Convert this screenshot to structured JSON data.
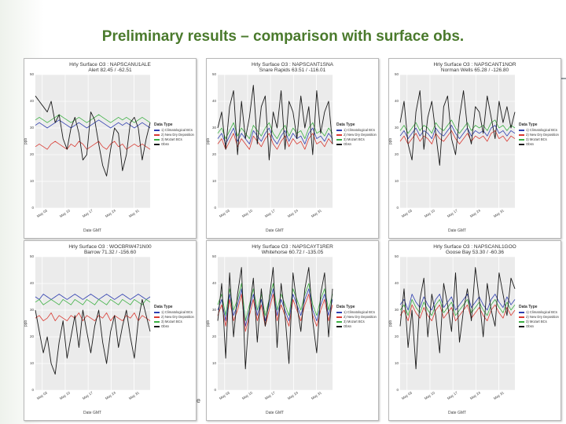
{
  "slide": {
    "title": "Preliminary results – comparison with surface obs.",
    "footer_fragment": "e"
  },
  "legend": {
    "title": "Data Type",
    "items": [
      {
        "label": "1) Climatological BCs",
        "color": "#2f3fb0"
      },
      {
        "label": "2) New Dry Deposition",
        "color": "#d93a32"
      },
      {
        "label": "3) Mozart BCs",
        "color": "#3cb043"
      },
      {
        "label": "Obsn",
        "color": "#1a1a1a"
      }
    ]
  },
  "chart_data": [
    {
      "type": "line",
      "title": "Hrly Surface O3 : NAPSCANU1ALE",
      "subtitle": "Alert 82.45 / -62.51",
      "xlabel": "Date GMT",
      "ylabel": "ppb",
      "yticks": [
        0,
        10,
        20,
        30,
        40,
        50
      ],
      "xticks": [
        "May 03",
        "May 10",
        "May 17",
        "May 24",
        "May 31"
      ],
      "ylim": [
        0,
        50
      ],
      "series": [
        {
          "name": "1) Climatological BCs",
          "values": [
            31,
            32,
            31,
            30,
            31,
            32,
            33,
            32,
            31,
            30,
            31,
            32,
            31,
            30,
            31,
            32,
            33,
            32,
            31,
            30,
            31,
            32,
            31,
            32,
            31,
            30,
            31,
            32,
            31,
            30
          ]
        },
        {
          "name": "2) New Dry Deposition",
          "values": [
            23,
            24,
            23,
            22,
            24,
            25,
            24,
            23,
            22,
            24,
            23,
            25,
            24,
            22,
            23,
            24,
            25,
            23,
            22,
            24,
            25,
            23,
            24,
            22,
            23,
            24,
            23,
            24,
            23,
            22
          ]
        },
        {
          "name": "3) Mozart BCs",
          "values": [
            33,
            34,
            33,
            32,
            33,
            34,
            35,
            34,
            33,
            32,
            33,
            34,
            33,
            32,
            33,
            34,
            35,
            34,
            33,
            32,
            33,
            34,
            33,
            34,
            33,
            32,
            33,
            34,
            33,
            32
          ]
        },
        {
          "name": "Obsn",
          "values": [
            42,
            40,
            38,
            36,
            40,
            32,
            35,
            26,
            22,
            30,
            34,
            28,
            18,
            20,
            36,
            33,
            24,
            16,
            12,
            22,
            30,
            28,
            14,
            20,
            32,
            34,
            30,
            18,
            26,
            32
          ]
        }
      ]
    },
    {
      "type": "line",
      "title": "Hrly Surface O3 : NAPSCANT1SNA",
      "subtitle": "Snare Rapids 63.51 / -116.01",
      "xlabel": "Date GMT",
      "ylabel": "ppb",
      "yticks": [
        0,
        10,
        20,
        30,
        40,
        50
      ],
      "xticks": [
        "May 03",
        "May 10",
        "May 17",
        "May 24",
        "May 31"
      ],
      "ylim": [
        0,
        50
      ],
      "series": [
        {
          "name": "1) Climatological BCs",
          "values": [
            26,
            28,
            24,
            27,
            30,
            25,
            28,
            26,
            24,
            29,
            27,
            25,
            28,
            30,
            26,
            24,
            27,
            29,
            25,
            28,
            26,
            27,
            24,
            28,
            30,
            26,
            27,
            25,
            28,
            26
          ]
        },
        {
          "name": "2) New Dry Deposition",
          "values": [
            24,
            26,
            22,
            25,
            28,
            23,
            26,
            24,
            22,
            27,
            25,
            23,
            26,
            28,
            24,
            22,
            25,
            27,
            23,
            26,
            24,
            25,
            22,
            26,
            28,
            24,
            25,
            23,
            26,
            24
          ]
        },
        {
          "name": "3) Mozart BCs",
          "values": [
            28,
            30,
            26,
            29,
            32,
            27,
            30,
            28,
            26,
            31,
            29,
            27,
            30,
            32,
            28,
            26,
            29,
            31,
            27,
            30,
            28,
            29,
            26,
            30,
            32,
            28,
            29,
            27,
            30,
            28
          ]
        },
        {
          "name": "Obsn",
          "values": [
            30,
            36,
            22,
            38,
            44,
            20,
            40,
            26,
            34,
            46,
            24,
            38,
            42,
            18,
            36,
            30,
            44,
            22,
            40,
            36,
            26,
            42,
            30,
            38,
            20,
            44,
            28,
            36,
            40,
            24
          ]
        }
      ]
    },
    {
      "type": "line",
      "title": "Hrly Surface O3 : NAPSCANT1NOR",
      "subtitle": "Norman Wells 65.28 / -126.80",
      "xlabel": "Date GMT",
      "ylabel": "ppb",
      "yticks": [
        0,
        10,
        20,
        30,
        40,
        50
      ],
      "xticks": [
        "May 03",
        "May 10",
        "May 17",
        "May 24",
        "May 31"
      ],
      "ylim": [
        0,
        50
      ],
      "series": [
        {
          "name": "1) Climatological BCs",
          "values": [
            27,
            29,
            26,
            28,
            30,
            27,
            29,
            28,
            26,
            30,
            28,
            27,
            29,
            31,
            28,
            26,
            28,
            30,
            27,
            29,
            28,
            29,
            27,
            30,
            31,
            28,
            29,
            27,
            29,
            28
          ]
        },
        {
          "name": "2) New Dry Deposition",
          "values": [
            25,
            27,
            24,
            26,
            28,
            25,
            27,
            26,
            24,
            28,
            26,
            25,
            27,
            29,
            26,
            24,
            26,
            28,
            25,
            27,
            26,
            27,
            25,
            28,
            29,
            26,
            27,
            25,
            27,
            26
          ]
        },
        {
          "name": "3) Mozart BCs",
          "values": [
            29,
            31,
            28,
            30,
            32,
            29,
            31,
            30,
            28,
            32,
            30,
            29,
            31,
            33,
            30,
            28,
            30,
            32,
            29,
            31,
            30,
            31,
            29,
            32,
            33,
            30,
            31,
            29,
            31,
            30
          ]
        },
        {
          "name": "Obsn",
          "values": [
            32,
            40,
            24,
            18,
            36,
            44,
            22,
            34,
            40,
            28,
            16,
            38,
            42,
            26,
            20,
            34,
            44,
            30,
            24,
            38,
            36,
            28,
            42,
            34,
            26,
            40,
            32,
            38,
            30,
            36
          ]
        }
      ]
    },
    {
      "type": "line",
      "title": "Hrly Surface O3 : WOCBRW471N00",
      "subtitle": "Barrow 71.32 / -156.60",
      "xlabel": "Date GMT",
      "ylabel": "ppb",
      "yticks": [
        0,
        10,
        20,
        30,
        40,
        50
      ],
      "xticks": [
        "May 03",
        "May 10",
        "May 17",
        "May 24",
        "May 31"
      ],
      "ylim": [
        0,
        50
      ],
      "series": [
        {
          "name": "1) Climatological BCs",
          "values": [
            35,
            34,
            36,
            35,
            34,
            35,
            36,
            35,
            34,
            35,
            36,
            35,
            34,
            35,
            36,
            35,
            34,
            35,
            36,
            35,
            34,
            35,
            36,
            35,
            34,
            35,
            36,
            35,
            34,
            35
          ]
        },
        {
          "name": "2) New Dry Deposition",
          "values": [
            27,
            28,
            26,
            27,
            29,
            26,
            28,
            27,
            26,
            28,
            27,
            29,
            26,
            28,
            27,
            26,
            28,
            27,
            29,
            26,
            28,
            27,
            26,
            28,
            27,
            29,
            26,
            28,
            27,
            26
          ]
        },
        {
          "name": "3) Mozart BCs",
          "values": [
            33,
            34,
            32,
            33,
            34,
            33,
            32,
            34,
            33,
            32,
            34,
            33,
            32,
            34,
            33,
            32,
            34,
            33,
            32,
            34,
            33,
            32,
            34,
            33,
            32,
            34,
            33,
            32,
            34,
            33
          ]
        },
        {
          "name": "Obsn",
          "values": [
            30,
            22,
            14,
            20,
            10,
            6,
            18,
            26,
            12,
            20,
            28,
            16,
            30,
            22,
            14,
            24,
            30,
            18,
            10,
            22,
            28,
            16,
            24,
            30,
            20,
            12,
            26,
            34,
            28,
            22
          ]
        }
      ]
    },
    {
      "type": "line",
      "title": "Hrly Surface O3 : NAPSCAYT1RER",
      "subtitle": "Whitehorse 60.72 / -135.05",
      "xlabel": "Date GMT",
      "ylabel": "ppb",
      "yticks": [
        0,
        10,
        20,
        30,
        40,
        50
      ],
      "xticks": [
        "May 03",
        "May 10",
        "May 17",
        "May 24",
        "May 31"
      ],
      "ylim": [
        0,
        50
      ],
      "series": [
        {
          "name": "1) Climatological BCs",
          "values": [
            30,
            34,
            26,
            36,
            28,
            32,
            38,
            24,
            30,
            36,
            28,
            34,
            26,
            32,
            38,
            28,
            34,
            30,
            26,
            36,
            32,
            28,
            34,
            38,
            30,
            26,
            32,
            36,
            28,
            34
          ]
        },
        {
          "name": "2) New Dry Deposition",
          "values": [
            28,
            32,
            24,
            34,
            26,
            30,
            36,
            22,
            28,
            34,
            26,
            32,
            24,
            30,
            36,
            26,
            32,
            28,
            24,
            34,
            30,
            26,
            32,
            36,
            28,
            24,
            30,
            34,
            26,
            32
          ]
        },
        {
          "name": "3) Mozart BCs",
          "values": [
            32,
            36,
            28,
            38,
            30,
            34,
            40,
            26,
            32,
            38,
            30,
            36,
            28,
            34,
            40,
            30,
            36,
            32,
            28,
            38,
            34,
            30,
            36,
            40,
            32,
            28,
            34,
            38,
            30,
            36
          ]
        },
        {
          "name": "Obsn",
          "values": [
            26,
            40,
            12,
            44,
            20,
            36,
            46,
            8,
            30,
            42,
            18,
            38,
            24,
            34,
            46,
            16,
            40,
            28,
            10,
            44,
            32,
            22,
            38,
            46,
            26,
            14,
            36,
            44,
            20,
            38
          ]
        }
      ]
    },
    {
      "type": "line",
      "title": "Hrly Surface O3 : NAPSCANL1GOO",
      "subtitle": "Goose Bay 53.30 / -60.36",
      "xlabel": "Date GMT",
      "ylabel": "ppb",
      "yticks": [
        0,
        10,
        20,
        30,
        40,
        50
      ],
      "xticks": [
        "May 03",
        "May 10",
        "May 17",
        "May 24",
        "May 31"
      ],
      "ylim": [
        0,
        50
      ],
      "series": [
        {
          "name": "1) Climatological BCs",
          "values": [
            32,
            34,
            30,
            36,
            33,
            31,
            35,
            32,
            30,
            34,
            36,
            31,
            33,
            35,
            30,
            32,
            34,
            36,
            31,
            33,
            35,
            32,
            30,
            34,
            36,
            33,
            31,
            35,
            32,
            34
          ]
        },
        {
          "name": "2) New Dry Deposition",
          "values": [
            28,
            30,
            26,
            32,
            29,
            27,
            31,
            28,
            26,
            30,
            32,
            27,
            29,
            31,
            26,
            28,
            30,
            32,
            27,
            29,
            31,
            28,
            26,
            30,
            32,
            29,
            27,
            31,
            28,
            30
          ]
        },
        {
          "name": "3) Mozart BCs",
          "values": [
            30,
            32,
            28,
            34,
            31,
            29,
            33,
            30,
            28,
            32,
            34,
            29,
            31,
            33,
            28,
            30,
            32,
            34,
            29,
            31,
            33,
            30,
            28,
            32,
            34,
            31,
            29,
            33,
            30,
            32
          ]
        },
        {
          "name": "Obsn",
          "values": [
            24,
            38,
            16,
            30,
            8,
            34,
            42,
            20,
            36,
            28,
            14,
            40,
            32,
            22,
            44,
            18,
            30,
            38,
            26,
            46,
            34,
            20,
            40,
            30,
            24,
            44,
            36,
            28,
            42,
            38
          ]
        }
      ]
    }
  ]
}
